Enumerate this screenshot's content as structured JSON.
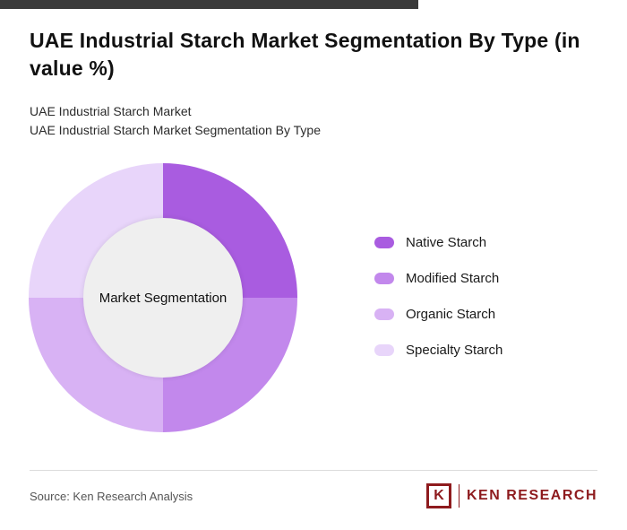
{
  "header": {
    "title": "UAE Industrial Starch Market Segmentation By Type (in value %)",
    "subtitle_1": "UAE Industrial Starch Market",
    "subtitle_2": "UAE Industrial Starch Market Segmentation By Type"
  },
  "chart_data": {
    "type": "pie",
    "donut": true,
    "title": "UAE Industrial Starch Market Segmentation By Type (in value %)",
    "center_label": "Market Segmentation",
    "legend_position": "right",
    "segments": [
      {
        "label": "Native Starch",
        "value": 25,
        "color": "#a95ce0"
      },
      {
        "label": "Modified Starch",
        "value": 25,
        "color": "#c288ec"
      },
      {
        "label": "Organic Starch",
        "value": 25,
        "color": "#d8b2f4"
      },
      {
        "label": "Specialty Starch",
        "value": 25,
        "color": "#e8d5fa"
      }
    ]
  },
  "footer": {
    "source": "Source: Ken Research Analysis",
    "logo_letter": "K",
    "logo_text": "KEN RESEARCH"
  }
}
